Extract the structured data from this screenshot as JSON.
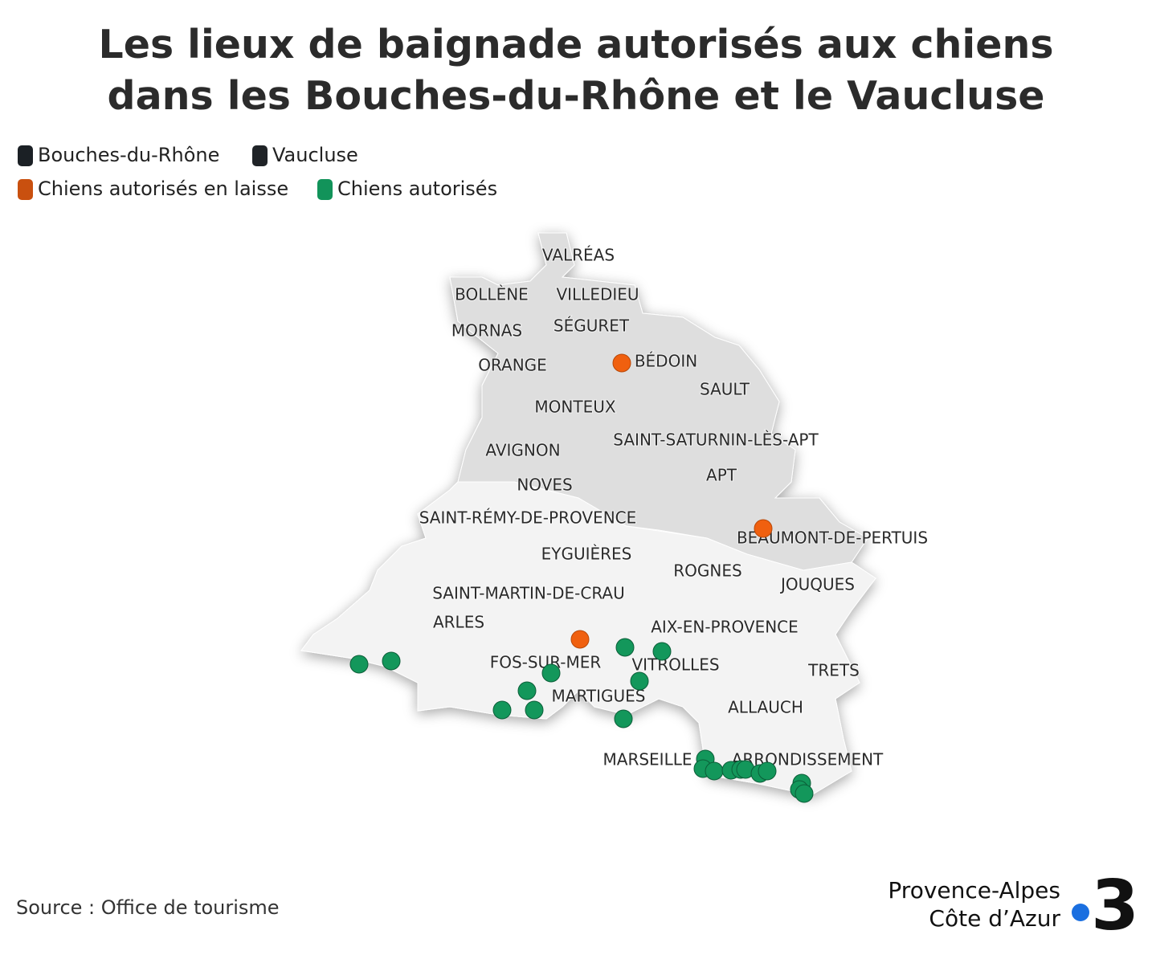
{
  "title_lines": [
    "Les lieux de baignade autorisés aux chiens",
    "dans les Bouches-du-Rhône et le Vaucluse"
  ],
  "legend": [
    {
      "name": "Bouches-du-Rhône",
      "color": "#1b2025"
    },
    {
      "name": "Vaucluse",
      "color": "#1f2327"
    },
    {
      "name": "Chiens autorisés en laisse",
      "color": "#c9500f"
    },
    {
      "name": "Chiens autorisés",
      "color": "#12935a"
    }
  ],
  "marker_colors": {
    "leash": "#f0600f",
    "free": "#13975b"
  },
  "towns": [
    "VALRÉAS",
    "BOLLÈNE",
    "VILLEDIEU",
    "MORNAS",
    "SÉGURET",
    "BÉDOIN",
    "ORANGE",
    "SAULT",
    "MONTEUX",
    "SAINT-SATURNIN-LÈS-APT",
    "AVIGNON",
    "APT",
    "NOVES",
    "SAINT-RÉMY-DE-PROVENCE",
    "BEAUMONT-DE-PERTUIS",
    "EYGUIÈRES",
    "ROGNES",
    "JOUQUES",
    "SAINT-MARTIN-DE-CRAU",
    "ARLES",
    "AIX-EN-PROVENCE",
    "FOS-SUR-MER",
    "VITROLLES",
    "TRETS",
    "MARTIGUES",
    "ALLAUCH",
    "MARSEILLE",
    "ARRONDISSEMENT"
  ],
  "source": "Source : Office de tourisme",
  "logo": {
    "line1": "Provence-Alpes",
    "line2": "Côte d’Azur",
    "mark": "3"
  }
}
